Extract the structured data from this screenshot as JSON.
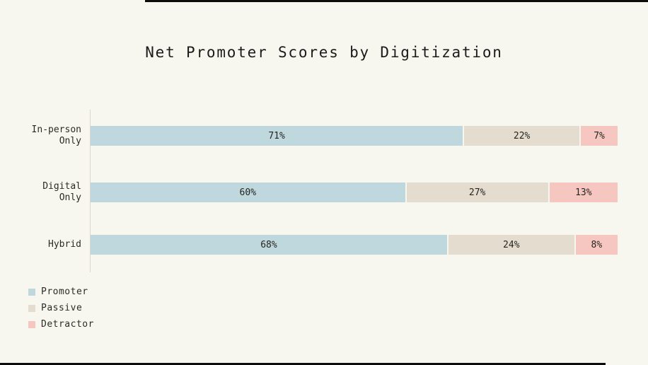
{
  "title": "Net Promoter Scores by Digitization",
  "colors": {
    "background": "#f8f7ef",
    "text": "#1b1b1b",
    "axis_line": "#d9d7d0",
    "border_accent": "#0c0c0c",
    "promoter": "#bfd8dd",
    "passive": "#e4ddcf",
    "detractor": "#f6c7c0"
  },
  "chart_data": {
    "type": "bar",
    "orientation": "horizontal",
    "stacked": true,
    "title": "Net Promoter Scores by Digitization",
    "categories": [
      "In-person\nOnly",
      "Digital\nOnly",
      "Hybrid"
    ],
    "series": [
      {
        "name": "Promoter",
        "color": "#bfd8dd",
        "values": [
          71,
          60,
          68
        ]
      },
      {
        "name": "Passive",
        "color": "#e4ddcf",
        "values": [
          22,
          27,
          24
        ]
      },
      {
        "name": "Detractor",
        "color": "#f6c7c0",
        "values": [
          7,
          13,
          8
        ]
      }
    ],
    "value_suffix": "%",
    "xlabel": "",
    "ylabel": "",
    "xlim": [
      0,
      100
    ],
    "grid": false,
    "legend_position": "bottom-left",
    "legend": [
      "Promoter",
      "Passive",
      "Detractor"
    ]
  }
}
